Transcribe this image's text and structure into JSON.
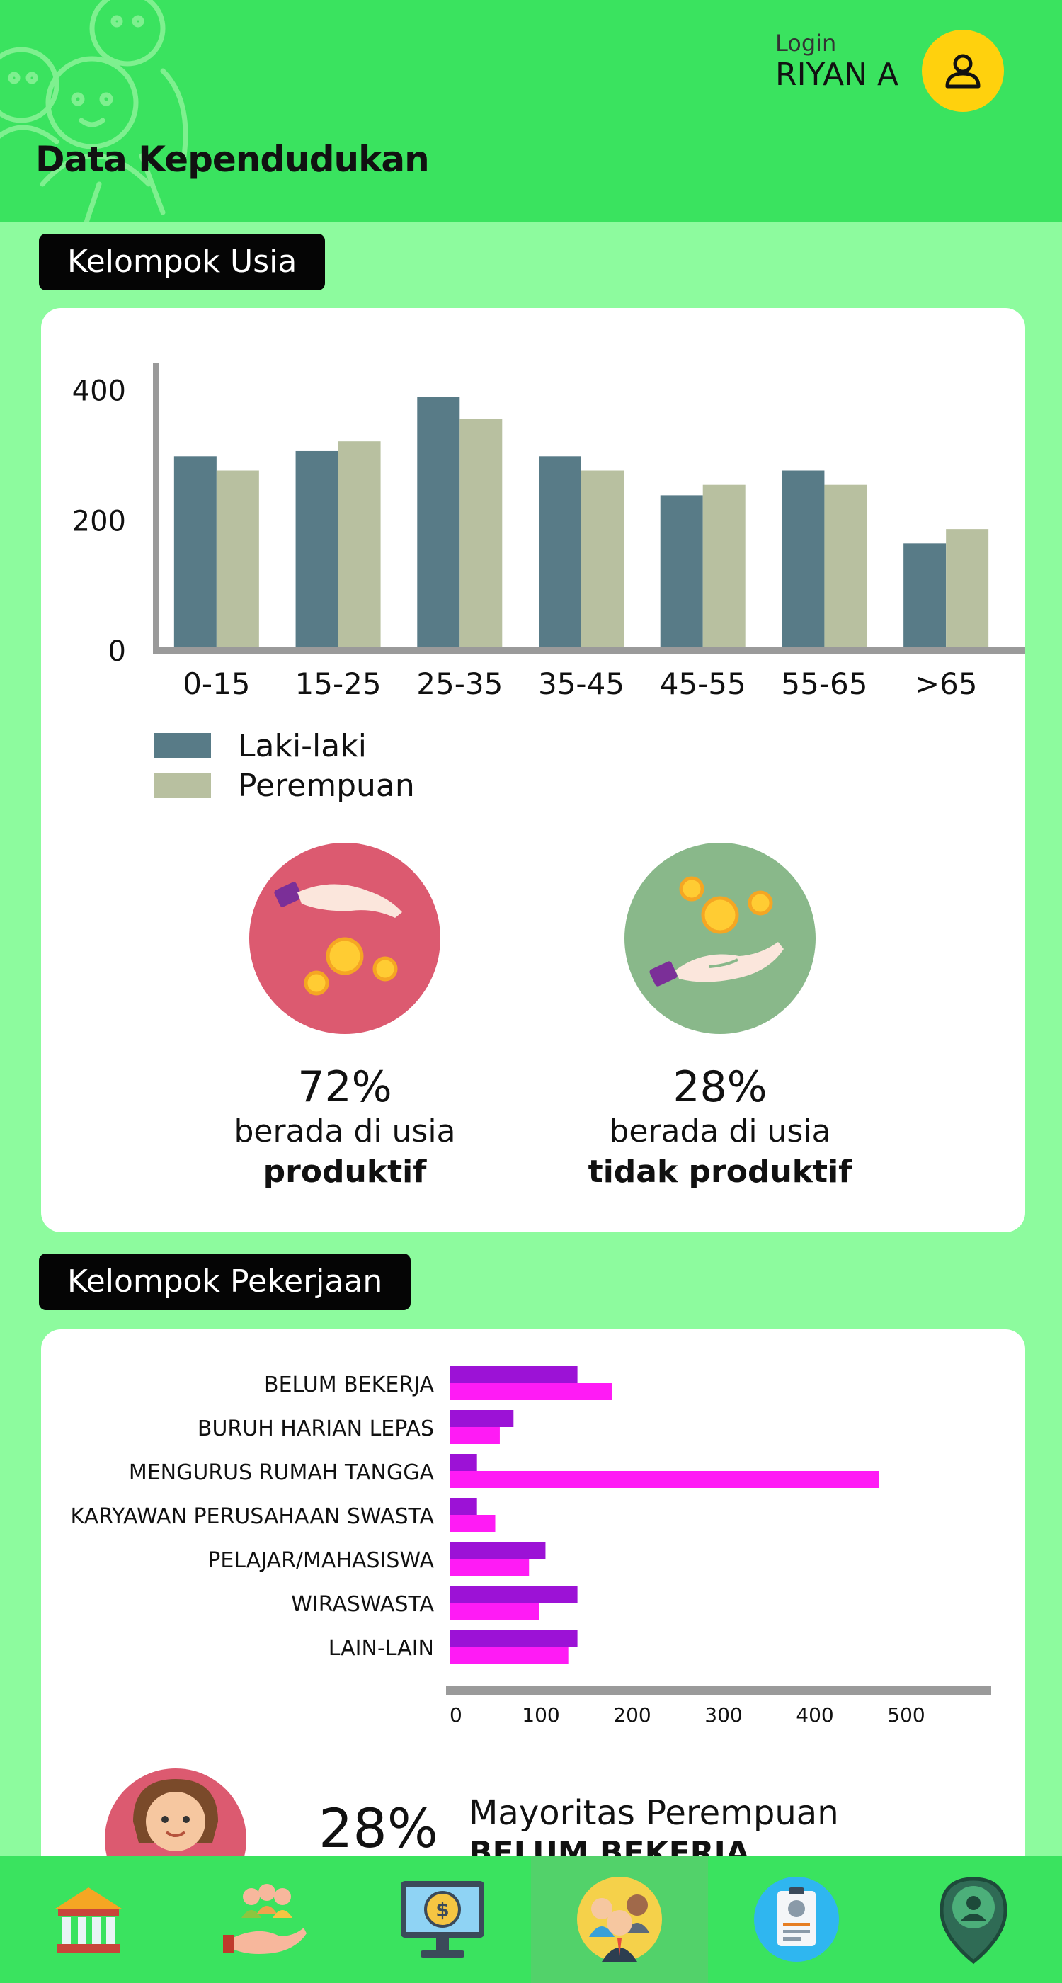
{
  "header": {
    "title": "Data Kependudukan",
    "login_label": "Login",
    "user_name": "RIYAN A",
    "background_color": "#3ae35f",
    "avatar_color": "#ffd10d"
  },
  "sections": {
    "age": {
      "label": "Kelompok Usia"
    },
    "job": {
      "label": "Kelompok Pekerjaan"
    }
  },
  "age_stats": [
    {
      "percent": "72%",
      "line1": "berada di usia",
      "line2": "produktif",
      "color": "#dc5a70",
      "icon": "hand-giving-coins-icon"
    },
    {
      "percent": "28%",
      "line1": "berada di usia",
      "line2": "tidak produktif",
      "color": "#89b88a",
      "icon": "hand-receiving-coins-icon"
    }
  ],
  "job_teaser": {
    "percent": "28%",
    "title": "Mayoritas Perempuan",
    "subtitle": "BELUM BEKERJA",
    "icon": "mother-with-baby-icon"
  },
  "nav": [
    {
      "icon": "government-building-icon"
    },
    {
      "icon": "social-aid-icon"
    },
    {
      "icon": "finance-monitor-icon"
    },
    {
      "icon": "population-group-icon",
      "active": true
    },
    {
      "icon": "id-card-icon"
    },
    {
      "icon": "location-person-icon"
    }
  ],
  "chart_data": [
    {
      "type": "bar",
      "categories": [
        "0-15",
        "15-25",
        "25-35",
        "35-45",
        "45-55",
        "55-65",
        ">65"
      ],
      "series": [
        {
          "name": "Laki-laki",
          "values": [
            297,
            305,
            388,
            297,
            237,
            275,
            163
          ],
          "color": "#587b87"
        },
        {
          "name": "Perempuan",
          "values": [
            275,
            320,
            355,
            275,
            253,
            253,
            185
          ],
          "color": "#b8c0a0"
        }
      ],
      "yticks": [
        0,
        200,
        400
      ],
      "ylim": [
        0,
        440
      ],
      "legend": "bottom-left",
      "grid": false
    },
    {
      "type": "bar",
      "orientation": "horizontal",
      "categories": [
        "BELUM BEKERJA",
        "BURUH HARIAN LEPAS",
        "MENGURUS RUMAH TANGGA",
        "KARYAWAN PERUSAHAAN SWASTA",
        "PELAJAR/MAHASISWA",
        "WIRASWASTA",
        "LAIN-LAIN"
      ],
      "series": [
        {
          "values": [
            140,
            70,
            30,
            30,
            105,
            140,
            140
          ],
          "color": "#9c12d6"
        },
        {
          "values": [
            178,
            55,
            470,
            50,
            87,
            98,
            130
          ],
          "color": "#ff1bf5"
        }
      ],
      "xticks": [
        0,
        100,
        200,
        300,
        400,
        500
      ],
      "xlim": [
        0,
        600
      ],
      "grid": false
    }
  ]
}
